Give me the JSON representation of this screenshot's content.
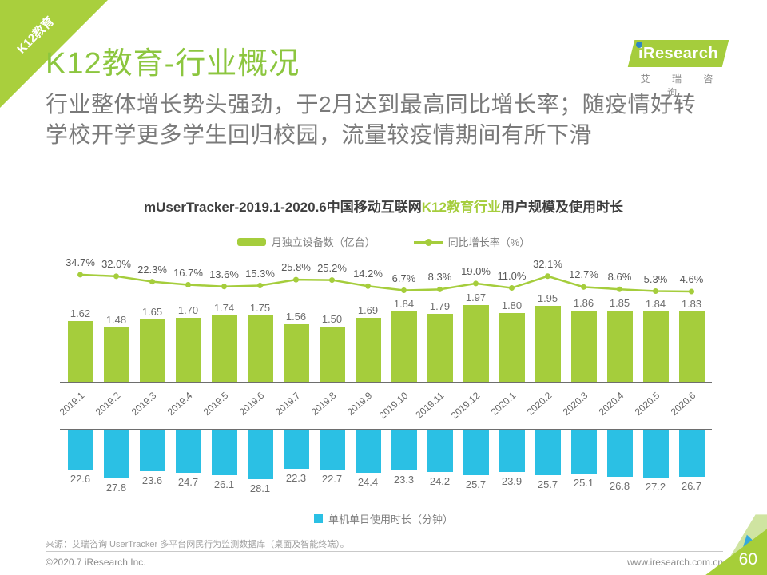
{
  "ribbon": {
    "label": "K12教育"
  },
  "header": {
    "title": "K12教育-行业概况",
    "subtitle_line1": "行业整体增长势头强劲，于2月达到最高同比增长率；随疫情好转",
    "subtitle_line2": "学校开学更多学生回归校园，流量较疫情期间有所下滑"
  },
  "logo": {
    "brand": "iResearch",
    "brand_cn": "艾 瑞 咨 询"
  },
  "chart_data": {
    "type": "combo: bar + line (top), inverted bar (bottom)",
    "title": {
      "prefix": "mUserTracker-2019.1-2020.6中国移动互联网",
      "highlight": "K12教育行业",
      "suffix": "用户规模及使用时长"
    },
    "categories": [
      "2019.1",
      "2019.2",
      "2019.3",
      "2019.4",
      "2019.5",
      "2019.6",
      "2019.7",
      "2019.8",
      "2019.9",
      "2019.10",
      "2019.11",
      "2019.12",
      "2020.1",
      "2020.2",
      "2020.3",
      "2020.4",
      "2020.5",
      "2020.6"
    ],
    "series": [
      {
        "name": "月独立设备数（亿台）",
        "type": "bar",
        "color": "#A5CD3C",
        "values": [
          1.62,
          1.48,
          1.65,
          1.7,
          1.74,
          1.75,
          1.56,
          1.5,
          1.69,
          1.84,
          1.79,
          1.97,
          1.8,
          1.95,
          1.86,
          1.85,
          1.84,
          1.83
        ]
      },
      {
        "name": "同比增长率（%）",
        "type": "line",
        "color": "#A5CD3C",
        "unit": "%",
        "values": [
          34.7,
          32.0,
          22.3,
          16.7,
          13.6,
          15.3,
          25.8,
          25.2,
          14.2,
          6.7,
          8.3,
          19.0,
          11.0,
          32.1,
          12.7,
          8.6,
          5.3,
          4.6
        ]
      },
      {
        "name": "单机单日使用时长（分钟）",
        "type": "bar",
        "direction": "down",
        "color": "#2BC0E4",
        "values": [
          22.6,
          27.8,
          23.6,
          24.7,
          26.1,
          28.1,
          22.3,
          22.7,
          24.4,
          23.3,
          24.2,
          25.7,
          23.9,
          25.7,
          25.1,
          26.8,
          27.2,
          26.7
        ]
      }
    ],
    "legend_position": "top-center and bottom-center",
    "grid": false
  },
  "footer": {
    "source": "来源：艾瑞咨询 UserTracker 多平台网民行为监测数据库（桌面及智能终端）。",
    "copyright": "©2020.7 iResearch Inc.",
    "website": "www.iresearch.com.cn",
    "page_number": "60"
  },
  "colors": {
    "brand_green": "#A5CD3C",
    "title_green": "#8CC63F",
    "cyan_blue": "#2BC0E4",
    "subtitle_gray": "#7A7A7A"
  }
}
